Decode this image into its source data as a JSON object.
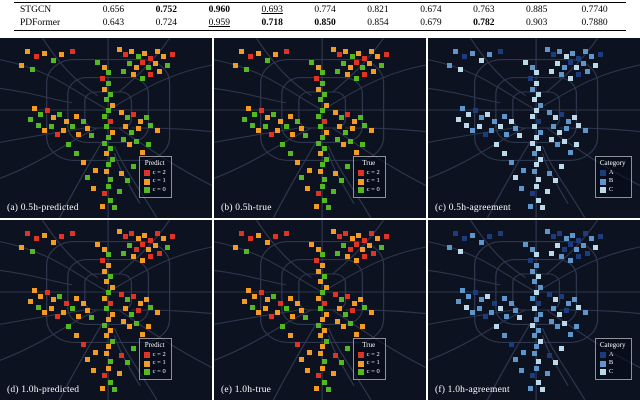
{
  "table": {
    "rows": [
      {
        "label": "STGCN",
        "cells": [
          {
            "v": "0.656"
          },
          {
            "v": "0.752",
            "b": 1
          },
          {
            "v": "0.960",
            "b": 1
          },
          {
            "v": "0.693",
            "u": 1
          },
          {
            "v": "0.774"
          },
          {
            "v": "0.821"
          },
          {
            "v": "0.674"
          },
          {
            "v": "0.763"
          },
          {
            "v": "0.885"
          },
          {
            "v": "0.7740"
          }
        ]
      },
      {
        "label": "PDFormer",
        "cells": [
          {
            "v": "0.643"
          },
          {
            "v": "0.724"
          },
          {
            "v": "0.959",
            "u": 1
          },
          {
            "v": "0.718",
            "b": 1
          },
          {
            "v": "0.850",
            "b": 1
          },
          {
            "v": "0.854"
          },
          {
            "v": "0.679"
          },
          {
            "v": "0.782",
            "b": 1
          },
          {
            "v": "0.903"
          },
          {
            "v": "0.7880"
          }
        ]
      }
    ]
  },
  "class_colors": {
    "0": "#53b822",
    "1": "#f29c25",
    "2": "#dd3425"
  },
  "category_colors": {
    "A": "#1d3c7e",
    "B": "#5e96cc",
    "C": "#bcd9ea"
  },
  "agreement_mapping": {
    "0": "C",
    "1": "B",
    "2": "A"
  },
  "map_bg": "#0c1220",
  "panels": [
    {
      "id": "a",
      "label": "(a) 0.5h-predicted",
      "mode": "class",
      "points_ref": "h05",
      "legend": {
        "title": "Predict",
        "items": [
          {
            "label": "c = 2",
            "color": "#dd3425"
          },
          {
            "label": "c = 1",
            "color": "#f29c25"
          },
          {
            "label": "c = 0",
            "color": "#53b822"
          }
        ]
      }
    },
    {
      "id": "b",
      "label": "(b) 0.5h-true",
      "mode": "class",
      "points_ref": "h05",
      "legend": {
        "title": "True",
        "items": [
          {
            "label": "c = 2",
            "color": "#dd3425"
          },
          {
            "label": "c = 1",
            "color": "#f29c25"
          },
          {
            "label": "c = 0",
            "color": "#53b822"
          }
        ]
      }
    },
    {
      "id": "c",
      "label": "(c) 0.5h-agreement",
      "mode": "agreement",
      "points_ref": "h05",
      "legend": {
        "title": "Category",
        "items": [
          {
            "label": "A",
            "color": "#1d3c7e"
          },
          {
            "label": "B",
            "color": "#5e96cc"
          },
          {
            "label": "C",
            "color": "#bcd9ea"
          }
        ]
      }
    },
    {
      "id": "d",
      "label": "(d) 1.0h-predicted",
      "mode": "class",
      "points_ref": "h10",
      "legend": {
        "title": "Predict",
        "items": [
          {
            "label": "c = 2",
            "color": "#dd3425"
          },
          {
            "label": "c = 1",
            "color": "#f29c25"
          },
          {
            "label": "c = 0",
            "color": "#53b822"
          }
        ]
      }
    },
    {
      "id": "e",
      "label": "(e) 1.0h-true",
      "mode": "class",
      "points_ref": "h10",
      "legend": {
        "title": "True",
        "items": [
          {
            "label": "c = 2",
            "color": "#dd3425"
          },
          {
            "label": "c = 1",
            "color": "#f29c25"
          },
          {
            "label": "c = 0",
            "color": "#53b822"
          }
        ]
      }
    },
    {
      "id": "f",
      "label": "(f) 1.0h-agreement",
      "mode": "agreement",
      "points_ref": "h10",
      "legend": {
        "title": "Category",
        "items": [
          {
            "label": "A",
            "color": "#1d3c7e"
          },
          {
            "label": "B",
            "color": "#5e96cc"
          },
          {
            "label": "C",
            "color": "#bcd9ea"
          }
        ]
      }
    }
  ],
  "map_points": {
    "h05": [
      [
        12,
        6,
        1
      ],
      [
        16,
        9,
        2
      ],
      [
        20,
        7,
        1
      ],
      [
        24,
        11,
        0
      ],
      [
        9,
        14,
        1
      ],
      [
        14,
        16,
        0
      ],
      [
        28,
        8,
        1
      ],
      [
        33,
        6,
        2
      ],
      [
        55,
        5,
        1
      ],
      [
        58,
        8,
        2
      ],
      [
        61,
        6,
        1
      ],
      [
        64,
        9,
        0
      ],
      [
        67,
        7,
        1
      ],
      [
        70,
        10,
        2
      ],
      [
        73,
        6,
        1
      ],
      [
        76,
        9,
        1
      ],
      [
        60,
        13,
        0
      ],
      [
        63,
        15,
        1
      ],
      [
        66,
        12,
        2
      ],
      [
        69,
        15,
        0
      ],
      [
        72,
        13,
        1
      ],
      [
        57,
        17,
        0
      ],
      [
        62,
        19,
        1
      ],
      [
        66,
        21,
        0
      ],
      [
        70,
        19,
        2
      ],
      [
        74,
        17,
        1
      ],
      [
        78,
        14,
        0
      ],
      [
        80,
        8,
        2
      ],
      [
        45,
        12,
        0
      ],
      [
        48,
        15,
        1
      ],
      [
        50,
        18,
        0
      ],
      [
        47,
        21,
        2
      ],
      [
        50,
        24,
        0
      ],
      [
        48,
        27,
        1
      ],
      [
        51,
        30,
        0
      ],
      [
        49,
        33,
        0
      ],
      [
        52,
        36,
        1
      ],
      [
        50,
        39,
        0
      ],
      [
        48,
        42,
        0
      ],
      [
        51,
        45,
        2
      ],
      [
        49,
        48,
        0
      ],
      [
        52,
        51,
        1
      ],
      [
        50,
        54,
        0
      ],
      [
        48,
        57,
        0
      ],
      [
        51,
        60,
        0
      ],
      [
        49,
        63,
        1
      ],
      [
        52,
        66,
        0
      ],
      [
        50,
        69,
        0
      ],
      [
        49,
        73,
        1
      ],
      [
        51,
        77,
        0
      ],
      [
        50,
        81,
        0
      ],
      [
        48,
        85,
        2
      ],
      [
        51,
        89,
        0
      ],
      [
        15,
        38,
        1
      ],
      [
        18,
        41,
        0
      ],
      [
        21,
        39,
        2
      ],
      [
        24,
        43,
        1
      ],
      [
        27,
        41,
        0
      ],
      [
        30,
        45,
        1
      ],
      [
        17,
        47,
        0
      ],
      [
        20,
        50,
        1
      ],
      [
        23,
        48,
        0
      ],
      [
        26,
        52,
        2
      ],
      [
        29,
        50,
        1
      ],
      [
        33,
        48,
        0
      ],
      [
        36,
        52,
        1
      ],
      [
        13,
        44,
        0
      ],
      [
        35,
        42,
        1
      ],
      [
        38,
        45,
        0
      ],
      [
        40,
        49,
        1
      ],
      [
        42,
        53,
        0
      ],
      [
        56,
        40,
        1
      ],
      [
        59,
        43,
        0
      ],
      [
        62,
        41,
        2
      ],
      [
        65,
        45,
        1
      ],
      [
        68,
        43,
        0
      ],
      [
        58,
        48,
        1
      ],
      [
        61,
        51,
        0
      ],
      [
        64,
        49,
        1
      ],
      [
        70,
        47,
        0
      ],
      [
        73,
        50,
        1
      ],
      [
        57,
        55,
        0
      ],
      [
        60,
        58,
        1
      ],
      [
        63,
        56,
        0
      ],
      [
        44,
        72,
        1
      ],
      [
        40,
        76,
        0
      ],
      [
        56,
        74,
        1
      ],
      [
        59,
        78,
        0
      ],
      [
        43,
        82,
        1
      ],
      [
        55,
        84,
        0
      ],
      [
        47,
        92,
        1
      ],
      [
        53,
        93,
        0
      ],
      [
        38,
        68,
        1
      ],
      [
        62,
        70,
        0
      ],
      [
        35,
        63,
        0
      ],
      [
        66,
        62,
        1
      ],
      [
        31,
        58,
        0
      ],
      [
        69,
        58,
        0
      ]
    ],
    "h10": [
      [
        12,
        6,
        2
      ],
      [
        16,
        9,
        2
      ],
      [
        20,
        7,
        1
      ],
      [
        24,
        11,
        1
      ],
      [
        9,
        14,
        1
      ],
      [
        14,
        16,
        0
      ],
      [
        28,
        8,
        2
      ],
      [
        33,
        6,
        2
      ],
      [
        55,
        5,
        1
      ],
      [
        58,
        8,
        2
      ],
      [
        61,
        6,
        2
      ],
      [
        64,
        9,
        1
      ],
      [
        67,
        7,
        1
      ],
      [
        70,
        10,
        2
      ],
      [
        73,
        6,
        2
      ],
      [
        76,
        9,
        1
      ],
      [
        60,
        13,
        0
      ],
      [
        63,
        15,
        2
      ],
      [
        66,
        12,
        2
      ],
      [
        69,
        15,
        1
      ],
      [
        72,
        13,
        1
      ],
      [
        57,
        17,
        0
      ],
      [
        62,
        19,
        1
      ],
      [
        66,
        21,
        1
      ],
      [
        70,
        19,
        2
      ],
      [
        74,
        17,
        2
      ],
      [
        78,
        14,
        0
      ],
      [
        80,
        8,
        2
      ],
      [
        45,
        12,
        1
      ],
      [
        48,
        15,
        1
      ],
      [
        50,
        18,
        0
      ],
      [
        47,
        21,
        2
      ],
      [
        50,
        24,
        1
      ],
      [
        48,
        27,
        1
      ],
      [
        51,
        30,
        0
      ],
      [
        49,
        33,
        1
      ],
      [
        52,
        36,
        1
      ],
      [
        50,
        39,
        0
      ],
      [
        48,
        42,
        1
      ],
      [
        51,
        45,
        2
      ],
      [
        49,
        48,
        0
      ],
      [
        52,
        51,
        1
      ],
      [
        50,
        54,
        1
      ],
      [
        48,
        57,
        0
      ],
      [
        51,
        60,
        1
      ],
      [
        49,
        63,
        1
      ],
      [
        52,
        66,
        0
      ],
      [
        50,
        69,
        1
      ],
      [
        49,
        73,
        1
      ],
      [
        51,
        77,
        0
      ],
      [
        50,
        81,
        1
      ],
      [
        48,
        85,
        2
      ],
      [
        51,
        89,
        0
      ],
      [
        15,
        38,
        1
      ],
      [
        18,
        41,
        1
      ],
      [
        21,
        39,
        2
      ],
      [
        24,
        43,
        1
      ],
      [
        27,
        41,
        0
      ],
      [
        30,
        45,
        2
      ],
      [
        17,
        47,
        0
      ],
      [
        20,
        50,
        1
      ],
      [
        23,
        48,
        1
      ],
      [
        26,
        52,
        2
      ],
      [
        29,
        50,
        1
      ],
      [
        33,
        48,
        0
      ],
      [
        36,
        52,
        1
      ],
      [
        13,
        44,
        1
      ],
      [
        35,
        42,
        1
      ],
      [
        38,
        45,
        1
      ],
      [
        40,
        49,
        1
      ],
      [
        42,
        53,
        0
      ],
      [
        56,
        40,
        2
      ],
      [
        59,
        43,
        0
      ],
      [
        62,
        41,
        2
      ],
      [
        65,
        45,
        1
      ],
      [
        68,
        43,
        1
      ],
      [
        58,
        48,
        1
      ],
      [
        61,
        51,
        0
      ],
      [
        64,
        49,
        2
      ],
      [
        70,
        47,
        0
      ],
      [
        73,
        50,
        1
      ],
      [
        57,
        55,
        1
      ],
      [
        60,
        58,
        1
      ],
      [
        63,
        56,
        0
      ],
      [
        44,
        72,
        1
      ],
      [
        40,
        76,
        1
      ],
      [
        56,
        74,
        2
      ],
      [
        59,
        78,
        0
      ],
      [
        43,
        82,
        1
      ],
      [
        55,
        84,
        1
      ],
      [
        47,
        92,
        1
      ],
      [
        53,
        93,
        0
      ],
      [
        38,
        68,
        2
      ],
      [
        62,
        70,
        0
      ],
      [
        35,
        63,
        1
      ],
      [
        66,
        62,
        1
      ],
      [
        31,
        58,
        0
      ],
      [
        69,
        58,
        1
      ]
    ]
  }
}
